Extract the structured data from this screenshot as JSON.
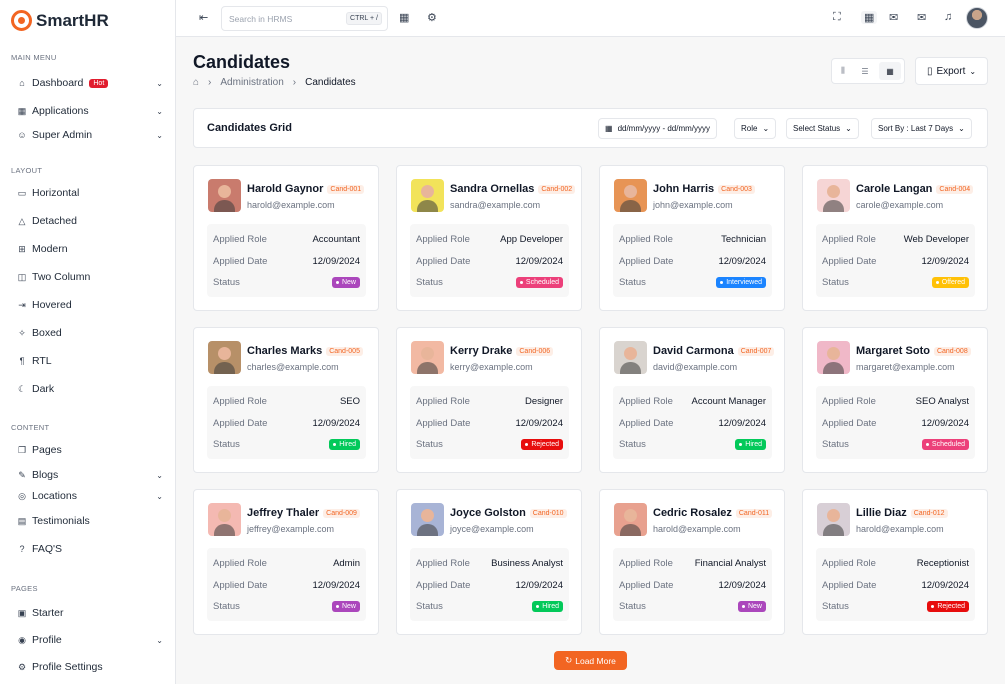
{
  "brand": {
    "name": "SmartHR"
  },
  "sidebar": {
    "main_menu": "MAIN MENU",
    "dashboard": "Dashboard",
    "hot": "Hot",
    "applications": "Applications",
    "super_admin": "Super Admin",
    "layout": "LAYOUT",
    "layout_items": [
      "Horizontal",
      "Detached",
      "Modern",
      "Two Column",
      "Hovered",
      "Boxed",
      "RTL",
      "Dark"
    ],
    "content": "CONTENT",
    "pages": "Pages",
    "blogs": "Blogs",
    "locations": "Locations",
    "testimonials": "Testimonials",
    "faqs": "FAQ'S",
    "pages_section": "PAGES",
    "starter": "Starter",
    "profile": "Profile",
    "profile_settings": "Profile Settings"
  },
  "topbar": {
    "search_placeholder": "Search in HRMS",
    "shortcut": "CTRL + /"
  },
  "page": {
    "title": "Candidates",
    "crumb_admin": "Administration",
    "crumb_current": "Candidates",
    "export": "Export"
  },
  "grid": {
    "title": "Candidates Grid",
    "date_range": "dd/mm/yyyy - dd/mm/yyyy",
    "role": "Role",
    "status": "Select Status",
    "sort": "Sort By : Last 7 Days"
  },
  "labels": {
    "role": "Applied Role",
    "date": "Applied Date",
    "status": "Status"
  },
  "status_colors": {
    "New": "#ab47bc",
    "Scheduled": "#ec407a",
    "Interviewed": "#1b84ff",
    "Offered": "#ffc107",
    "Hired": "#03c95a",
    "Rejected": "#e70d0d"
  },
  "candidates": [
    {
      "name": "Harold Gaynor",
      "id": "Cand-001",
      "email": "harold@example.com",
      "role": "Accountant",
      "date": "12/09/2024",
      "status": "New",
      "photo_bg": "#c97b6d"
    },
    {
      "name": "Sandra Ornellas",
      "id": "Cand-002",
      "email": "sandra@example.com",
      "role": "App Developer",
      "date": "12/09/2024",
      "status": "Scheduled",
      "photo_bg": "#f2e35a"
    },
    {
      "name": "John Harris",
      "id": "Cand-003",
      "email": "john@example.com",
      "role": "Technician",
      "date": "12/09/2024",
      "status": "Interviewed",
      "photo_bg": "#e79455"
    },
    {
      "name": "Carole Langan",
      "id": "Cand-004",
      "email": "carole@example.com",
      "role": "Web Developer",
      "date": "12/09/2024",
      "status": "Offered",
      "photo_bg": "#f6d5d5"
    },
    {
      "name": "Charles Marks",
      "id": "Cand-005",
      "email": "charles@example.com",
      "role": "SEO",
      "date": "12/09/2024",
      "status": "Hired",
      "photo_bg": "#b79068"
    },
    {
      "name": "Kerry Drake",
      "id": "Cand-006",
      "email": "kerry@example.com",
      "role": "Designer",
      "date": "12/09/2024",
      "status": "Rejected",
      "photo_bg": "#f2b9a3"
    },
    {
      "name": "David Carmona",
      "id": "Cand-007",
      "email": "david@example.com",
      "role": "Account Manager",
      "date": "12/09/2024",
      "status": "Hired",
      "photo_bg": "#d9d4cf"
    },
    {
      "name": "Margaret Soto",
      "id": "Cand-008",
      "email": "margaret@example.com",
      "role": "SEO Analyst",
      "date": "12/09/2024",
      "status": "Scheduled",
      "photo_bg": "#f0b8c8"
    },
    {
      "name": "Jeffrey Thaler",
      "id": "Cand-009",
      "email": "jeffrey@example.com",
      "role": "Admin",
      "date": "12/09/2024",
      "status": "New",
      "photo_bg": "#f4b9b2"
    },
    {
      "name": "Joyce Golston",
      "id": "Cand-010",
      "email": "joyce@example.com",
      "role": "Business Analyst",
      "date": "12/09/2024",
      "status": "Hired",
      "photo_bg": "#a8b4d6"
    },
    {
      "name": "Cedric Rosalez",
      "id": "Cand-011",
      "email": "harold@example.com",
      "role": "Financial Analyst",
      "date": "12/09/2024",
      "status": "New",
      "photo_bg": "#e8a18f"
    },
    {
      "name": "Lillie Diaz",
      "id": "Cand-012",
      "email": "harold@example.com",
      "role": "Receptionist",
      "date": "12/09/2024",
      "status": "Rejected",
      "photo_bg": "#d8cfd6"
    }
  ],
  "load_more": "Load More"
}
